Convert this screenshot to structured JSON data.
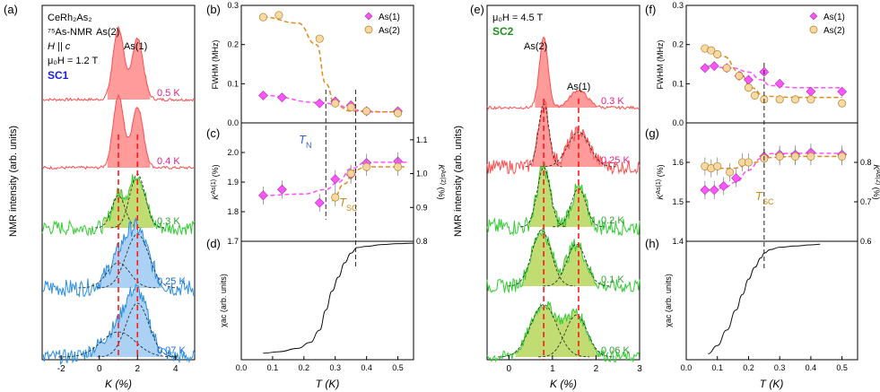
{
  "colors": {
    "red": "#ff8a8a",
    "red_line": "#ff4d4d",
    "green": "#b7d65c",
    "green_line": "#33cc33",
    "blue": "#9cc9f2",
    "blue_line": "#2b8fe0",
    "pink": "#ff55ff",
    "orange": "#e08a1e",
    "label_magenta": "#e0208c",
    "label_green": "#2e9e2e",
    "label_blue": "#1c6fe0",
    "sample_blue": "#1c1cd8",
    "sample_green": "#1e8f1e",
    "tn_blue": "#3a5ce0",
    "dash_red": "#ff1a1a"
  },
  "panels": {
    "a": "(a)",
    "b": "(b)",
    "c": "(c)",
    "d": "(d)",
    "e": "(e)",
    "f": "(f)",
    "g": "(g)",
    "h": "(h)"
  },
  "annotations": {
    "sample_line1": "CeRh₂As₂",
    "sample_line2": "⁷⁵As-NMR",
    "field_dir": "H || c",
    "field_a": "μ₀H = 1.2 T",
    "field_e": "μ₀H = 4.5 T",
    "sc1": "SC1",
    "sc2": "SC2",
    "as2": "As(2)",
    "as1": "As(1)",
    "tn": "T_N",
    "tsc": "T_SC"
  },
  "axes": {
    "nmr_ylabel": "NMR intensity (arb. units)",
    "k_xlabel": "K (%)",
    "t_xlabel": "T (K)",
    "fwhm_ylabel": "FWHM (MHz)",
    "kas1_ylabel": "K^As(1) (%)",
    "kas2_ylabel": "K^As(2) (%)",
    "chi_ylabel": "χac (arb. units)",
    "a_xticks": [
      "-2",
      "0",
      "2",
      "4"
    ],
    "e_xticks": [
      "0",
      "1",
      "2",
      "3"
    ],
    "t_xticks_left": [
      "0.0",
      "0.1",
      "0.2",
      "0.3",
      "0.4",
      "0.5"
    ],
    "t_xticks_right": [
      "0.0",
      "0.1",
      "0.2",
      "0.3",
      "0.4",
      "0.5"
    ],
    "b_yticks": [
      "0.0",
      "0.1",
      "0.2",
      "0.3"
    ],
    "c_yticks_l": [
      "1.7",
      "1.8",
      "1.9",
      "2.0"
    ],
    "c_yticks_r": [
      "0.8",
      "0.9",
      "1.0",
      "1.1"
    ],
    "f_yticks": [
      "0.0",
      "0.1",
      "0.2",
      "0.3"
    ],
    "g_yticks_l": [
      "1.4",
      "1.5",
      "1.6"
    ],
    "g_yticks_r": [
      "0.6",
      "0.7",
      "0.8"
    ]
  },
  "chart_data": [
    {
      "panel": "a",
      "type": "line",
      "title": "NMR spectra SC1, μ0H = 1.2 T",
      "xlabel": "K (%)",
      "ylabel": "NMR intensity (arb. units)",
      "xlim": [
        -3,
        5
      ],
      "peaks_as2": 1.0,
      "peaks_as1": 2.0,
      "traces": [
        {
          "label": "0.5 K",
          "color": "red",
          "noise": 0.02,
          "peaks": [
            [
              1.0,
              0.28,
              1.0
            ],
            [
              2.0,
              0.3,
              0.85
            ]
          ]
        },
        {
          "label": "0.4 K",
          "color": "red",
          "noise": 0.02,
          "peaks": [
            [
              1.0,
              0.28,
              1.0
            ],
            [
              2.0,
              0.3,
              0.85
            ]
          ]
        },
        {
          "label": "0.3 K",
          "color": "green",
          "noise": 0.1,
          "peaks": [
            [
              1.0,
              0.35,
              0.45
            ],
            [
              2.0,
              0.4,
              0.75
            ]
          ]
        },
        {
          "label": "0.25 K",
          "color": "blue",
          "noise": 0.12,
          "peaks": [
            [
              1.0,
              0.6,
              0.35
            ],
            [
              2.0,
              0.6,
              0.75
            ]
          ]
        },
        {
          "label": "0.07 K",
          "color": "blue",
          "noise": 0.1,
          "peaks": [
            [
              1.0,
              0.9,
              0.35
            ],
            [
              2.0,
              0.6,
              0.75
            ]
          ]
        }
      ]
    },
    {
      "panel": "b",
      "type": "scatter",
      "xlabel": "T (K)",
      "ylabel": "FWHM (MHz)",
      "xlim": [
        0,
        0.55
      ],
      "ylim": [
        0,
        0.3
      ],
      "series": [
        {
          "name": "As(1)",
          "marker": "diamond",
          "x": [
            0.07,
            0.13,
            0.25,
            0.3,
            0.35,
            0.4,
            0.5
          ],
          "y": [
            0.07,
            0.065,
            0.05,
            0.055,
            0.045,
            0.03,
            0.03
          ]
        },
        {
          "name": "As(2)",
          "marker": "circle",
          "x": [
            0.07,
            0.12,
            0.25,
            0.3,
            0.35,
            0.4,
            0.5
          ],
          "y": [
            0.27,
            0.275,
            0.215,
            0.05,
            0.04,
            0.03,
            0.025
          ]
        }
      ],
      "fits": [
        {
          "name": "As(1) fit",
          "color": "pink",
          "x": [
            0.07,
            0.25,
            0.3,
            0.35,
            0.4,
            0.5
          ],
          "y": [
            0.07,
            0.052,
            0.048,
            0.035,
            0.028,
            0.028
          ]
        },
        {
          "name": "As(2) fit",
          "color": "orange",
          "x": [
            0.07,
            0.18,
            0.24,
            0.27,
            0.3,
            0.35,
            0.5
          ],
          "y": [
            0.27,
            0.255,
            0.2,
            0.1,
            0.045,
            0.03,
            0.028
          ]
        }
      ]
    },
    {
      "panel": "c",
      "type": "scatter",
      "xlabel": "T (K)",
      "ylabel": "K^As(1) (%)",
      "ylabel_right": "K^As(2) (%)",
      "xlim": [
        0,
        0.55
      ],
      "ylim": [
        1.7,
        2.1
      ],
      "ylim_right": [
        0.8,
        1.15
      ],
      "series": [
        {
          "name": "As(1)",
          "axis": "left",
          "marker": "diamond",
          "x": [
            0.07,
            0.13,
            0.25,
            0.3,
            0.35,
            0.4,
            0.5
          ],
          "y": [
            1.855,
            1.875,
            1.83,
            1.91,
            1.925,
            1.965,
            1.97
          ]
        },
        {
          "name": "As(2)",
          "axis": "right",
          "marker": "circle",
          "x": [
            0.3,
            0.35,
            0.4,
            0.5
          ],
          "y": [
            0.93,
            1.0,
            1.02,
            1.02
          ]
        }
      ],
      "fits": [
        {
          "name": "As(1) fit",
          "color": "pink",
          "x": [
            0.07,
            0.2,
            0.27,
            0.31,
            0.35,
            0.4,
            0.53
          ],
          "y": [
            1.855,
            1.86,
            1.875,
            1.9,
            1.945,
            1.967,
            1.967
          ]
        },
        {
          "name": "As(2) fit",
          "color": "orange",
          "x": [
            0.29,
            0.33,
            0.36,
            0.4,
            0.53
          ],
          "y": [
            0.92,
            0.97,
            1.01,
            1.02,
            1.02
          ]
        }
      ],
      "markers": [
        {
          "label": "T_N",
          "x": 0.27
        },
        {
          "label": "T_SC",
          "x": 0.36
        }
      ]
    },
    {
      "panel": "d",
      "type": "line",
      "xlabel": "T (K)",
      "ylabel": "χac (arb. units)",
      "xlim": [
        0,
        0.55
      ],
      "ylim": [
        0,
        1
      ],
      "x": [
        0.07,
        0.12,
        0.18,
        0.22,
        0.25,
        0.27,
        0.29,
        0.31,
        0.33,
        0.35,
        0.37,
        0.4,
        0.45,
        0.5,
        0.55
      ],
      "y": [
        0.05,
        0.07,
        0.1,
        0.15,
        0.25,
        0.42,
        0.58,
        0.7,
        0.82,
        0.9,
        0.95,
        0.96,
        0.97,
        0.975,
        0.98
      ]
    },
    {
      "panel": "e",
      "type": "line",
      "title": "NMR spectra SC2, μ0H = 4.5 T",
      "xlabel": "K (%)",
      "ylabel": "NMR intensity (arb. units)",
      "xlim": [
        -0.5,
        3
      ],
      "peaks_as2": 0.8,
      "peaks_as1": 1.6,
      "traces": [
        {
          "label": "0.3 K",
          "color": "red",
          "noise": 0.02,
          "peaks": [
            [
              0.8,
              0.1,
              1.0
            ],
            [
              1.6,
              0.2,
              0.25
            ]
          ]
        },
        {
          "label": "0.25 K",
          "color": "red",
          "noise": 0.1,
          "peaks": [
            [
              0.8,
              0.12,
              0.9
            ],
            [
              1.6,
              0.25,
              0.5
            ]
          ]
        },
        {
          "label": "0.2 K",
          "color": "green",
          "noise": 0.12,
          "peaks": [
            [
              0.8,
              0.15,
              0.85
            ],
            [
              1.6,
              0.17,
              0.55
            ]
          ]
        },
        {
          "label": "0.1 K",
          "color": "green",
          "noise": 0.1,
          "peaks": [
            [
              0.75,
              0.22,
              0.8
            ],
            [
              1.55,
              0.22,
              0.6
            ]
          ]
        },
        {
          "label": "0.06 K",
          "color": "green",
          "noise": 0.08,
          "peaks": [
            [
              0.8,
              0.3,
              0.75
            ],
            [
              1.55,
              0.25,
              0.6
            ]
          ]
        }
      ]
    },
    {
      "panel": "f",
      "type": "scatter",
      "xlabel": "T (K)",
      "ylabel": "FWHM (MHz)",
      "xlim": [
        0,
        0.55
      ],
      "ylim": [
        0,
        0.3
      ],
      "series": [
        {
          "name": "As(1)",
          "marker": "diamond",
          "x": [
            0.06,
            0.09,
            0.13,
            0.17,
            0.2,
            0.25,
            0.3,
            0.4,
            0.5
          ],
          "y": [
            0.14,
            0.145,
            0.14,
            0.12,
            0.11,
            0.13,
            0.1,
            0.08,
            0.08
          ]
        },
        {
          "name": "As(2)",
          "marker": "circle",
          "x": [
            0.06,
            0.08,
            0.1,
            0.13,
            0.17,
            0.2,
            0.22,
            0.25,
            0.3,
            0.35,
            0.4,
            0.5
          ],
          "y": [
            0.19,
            0.185,
            0.175,
            0.14,
            0.12,
            0.09,
            0.07,
            0.06,
            0.06,
            0.06,
            0.06,
            0.05
          ]
        }
      ],
      "fits": [
        {
          "name": "As(1) fit",
          "color": "pink",
          "x": [
            0.06,
            0.15,
            0.2,
            0.24,
            0.27,
            0.35,
            0.5
          ],
          "y": [
            0.145,
            0.14,
            0.13,
            0.11,
            0.095,
            0.09,
            0.09
          ]
        },
        {
          "name": "As(2) fit",
          "color": "orange",
          "x": [
            0.06,
            0.12,
            0.17,
            0.21,
            0.25,
            0.35,
            0.5
          ],
          "y": [
            0.19,
            0.17,
            0.13,
            0.09,
            0.068,
            0.065,
            0.065
          ]
        }
      ]
    },
    {
      "panel": "g",
      "type": "scatter",
      "xlabel": "T (K)",
      "ylabel": "K^As(1) (%)",
      "ylabel_right": "K^As(2) (%)",
      "xlim": [
        0,
        0.55
      ],
      "ylim": [
        1.4,
        1.7
      ],
      "ylim_right": [
        0.6,
        0.9
      ],
      "series": [
        {
          "name": "As(1)",
          "axis": "left",
          "marker": "diamond",
          "x": [
            0.06,
            0.09,
            0.12,
            0.16,
            0.25,
            0.3,
            0.35,
            0.4,
            0.5
          ],
          "y": [
            1.53,
            1.53,
            1.54,
            1.56,
            1.615,
            1.62,
            1.62,
            1.625,
            1.62
          ]
        },
        {
          "name": "As(2)",
          "axis": "right",
          "marker": "circle",
          "x": [
            0.06,
            0.08,
            0.1,
            0.14,
            0.18,
            0.2,
            0.25,
            0.3,
            0.35,
            0.4,
            0.5
          ],
          "y": [
            0.79,
            0.785,
            0.79,
            0.775,
            0.8,
            0.8,
            0.81,
            0.815,
            0.815,
            0.815,
            0.815
          ]
        }
      ],
      "fits": [
        {
          "name": "As(1) fit",
          "color": "pink",
          "x": [
            0.06,
            0.12,
            0.16,
            0.2,
            0.24,
            0.27,
            0.35,
            0.5
          ],
          "y": [
            1.53,
            1.535,
            1.55,
            1.58,
            1.61,
            1.622,
            1.623,
            1.623
          ]
        },
        {
          "name": "As(2) fit",
          "color": "orange",
          "x": [
            0.06,
            0.15,
            0.22,
            0.26,
            0.35,
            0.5
          ],
          "y": [
            0.785,
            0.785,
            0.8,
            0.812,
            0.815,
            0.815
          ]
        }
      ],
      "markers": [
        {
          "label": "T_SC",
          "x": 0.25
        }
      ]
    },
    {
      "panel": "h",
      "type": "line",
      "xlabel": "T (K)",
      "ylabel": "χac (arb. units)",
      "xlim": [
        0,
        0.55
      ],
      "ylim": [
        0,
        1
      ],
      "x": [
        0.07,
        0.1,
        0.13,
        0.16,
        0.18,
        0.2,
        0.22,
        0.24,
        0.25,
        0.27,
        0.3,
        0.35,
        0.4,
        0.43
      ],
      "y": [
        0.05,
        0.12,
        0.25,
        0.42,
        0.55,
        0.68,
        0.78,
        0.86,
        0.9,
        0.93,
        0.95,
        0.96,
        0.97,
        0.975
      ]
    }
  ]
}
